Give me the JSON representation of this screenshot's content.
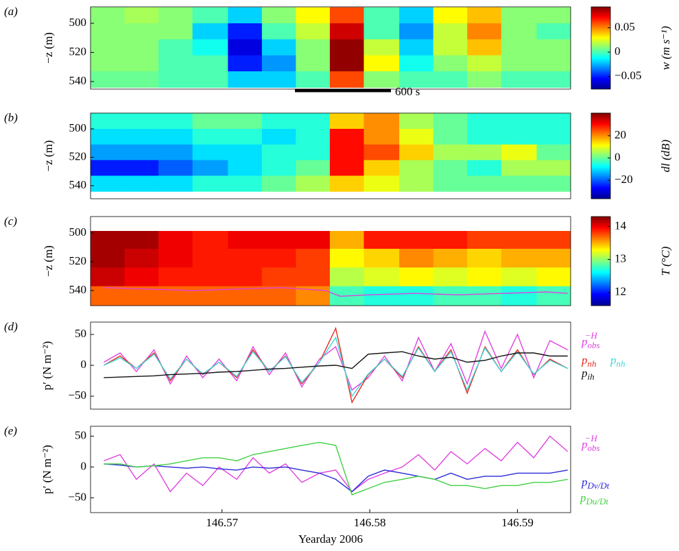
{
  "chart_data": [
    {
      "type": "heatmap",
      "panel_label": "(a)",
      "ylabel": "−z (m)",
      "yaxis_inverted": true,
      "xlim": [
        146.5611,
        146.5936
      ],
      "ylim": [
        488.7,
        545.2
      ],
      "yticks": [
        500,
        520,
        540
      ],
      "xbins": [
        146.5611,
        146.5634,
        146.5657,
        146.568,
        146.5704,
        146.5727,
        146.575,
        146.5773,
        146.5796,
        146.582,
        146.5843,
        146.5866,
        146.5889,
        146.5913,
        146.5936
      ],
      "ybins": [
        489,
        500,
        511,
        522,
        533,
        544
      ],
      "z": [
        [
          0.01,
          0.015,
          0.01,
          0.0,
          -0.02,
          0.01,
          0.03,
          0.06,
          0.0,
          -0.02,
          0.03,
          0.04,
          0.01,
          0.01
        ],
        [
          0.01,
          0.01,
          0.01,
          -0.02,
          -0.05,
          0.0,
          0.02,
          0.08,
          0.0,
          -0.03,
          0.02,
          0.05,
          0.01,
          0.0
        ],
        [
          0.01,
          0.01,
          0.0,
          -0.01,
          -0.06,
          -0.02,
          0.01,
          0.09,
          0.02,
          -0.02,
          0.02,
          0.04,
          0.01,
          0.01
        ],
        [
          0.01,
          0.01,
          0.0,
          0.0,
          -0.05,
          -0.03,
          0.01,
          0.09,
          0.03,
          -0.01,
          0.01,
          0.02,
          0.01,
          0.01
        ],
        [
          0.005,
          0.005,
          0.0,
          0.0,
          -0.02,
          -0.02,
          0.0,
          0.06,
          0.01,
          0.0,
          0.0,
          0.01,
          0.0,
          0.0
        ]
      ],
      "colorbar": {
        "label": "w (m s⁻¹)",
        "clim": [
          -0.076,
          0.093
        ],
        "ticks": [
          0.05,
          0,
          {
            "value": -0.05,
            "label": "−0.05"
          }
        ]
      },
      "annotation": "600 s"
    },
    {
      "type": "heatmap",
      "panel_label": "(b)",
      "ylabel": "−z (m)",
      "yaxis_inverted": true,
      "xlim": [
        146.5611,
        146.5936
      ],
      "ylim": [
        488.9,
        549.2
      ],
      "yticks": [
        500,
        520,
        540
      ],
      "xbins": [
        146.5611,
        146.5634,
        146.5657,
        146.568,
        146.5704,
        146.5727,
        146.575,
        146.5773,
        146.5796,
        146.582,
        146.5843,
        146.5866,
        146.5889,
        146.5913,
        146.5936
      ],
      "ybins": [
        489,
        500,
        511,
        522,
        533,
        544
      ],
      "z": [
        [
          -5,
          -5,
          -5,
          0,
          0,
          -5,
          -5,
          15,
          20,
          5,
          0,
          -5,
          -5,
          -5
        ],
        [
          -10,
          -10,
          -10,
          -5,
          -5,
          -10,
          -5,
          30,
          20,
          10,
          0,
          -5,
          -5,
          -5
        ],
        [
          -15,
          -15,
          -15,
          -10,
          -10,
          -5,
          -5,
          30,
          25,
          15,
          5,
          5,
          10,
          0
        ],
        [
          -25,
          -25,
          -20,
          -15,
          -10,
          -5,
          0,
          30,
          15,
          5,
          0,
          -5,
          5,
          5
        ],
        [
          -10,
          -10,
          -10,
          -5,
          -5,
          0,
          5,
          15,
          10,
          5,
          0,
          0,
          0,
          0
        ]
      ],
      "colorbar": {
        "label": "dl (dB)",
        "clim": [
          -36.6,
          40.3
        ],
        "ticks": [
          20,
          0,
          {
            "value": -20,
            "label": "−20"
          }
        ]
      }
    },
    {
      "type": "heatmap",
      "panel_label": "(c)",
      "ylabel": "−z (m)",
      "yaxis_inverted": true,
      "xlim": [
        146.5611,
        146.5936
      ],
      "ylim": [
        488.6,
        550.5
      ],
      "yticks": [
        500,
        520,
        540
      ],
      "xbins": [
        146.5611,
        146.5634,
        146.5657,
        146.568,
        146.5704,
        146.5727,
        146.575,
        146.5773,
        146.5796,
        146.582,
        146.5843,
        146.5866,
        146.5889,
        146.5913,
        146.5936
      ],
      "ybins": [
        498.6,
        511,
        524,
        537,
        550.5
      ],
      "z": [
        [
          14.2,
          14.2,
          14.0,
          13.9,
          14.0,
          14.0,
          14.0,
          13.5,
          13.9,
          13.9,
          13.9,
          13.8,
          13.8,
          13.8
        ],
        [
          14.2,
          14.1,
          14.0,
          13.9,
          13.9,
          13.9,
          13.8,
          13.3,
          13.4,
          13.6,
          13.5,
          13.4,
          13.5,
          13.5
        ],
        [
          14.1,
          14.0,
          13.9,
          13.9,
          13.9,
          13.8,
          13.8,
          13.1,
          13.2,
          13.3,
          13.2,
          13.3,
          13.2,
          13.3
        ],
        [
          13.7,
          13.7,
          13.7,
          13.7,
          13.7,
          13.7,
          13.6,
          12.8,
          12.7,
          12.7,
          12.8,
          12.8,
          12.7,
          12.8
        ]
      ],
      "colorbar": {
        "label": "T (°C)",
        "clim": [
          11.6,
          14.3
        ],
        "ticks": [
          14,
          13,
          12
        ]
      },
      "series": [
        {
          "color": "#e040e0",
          "x": [
            146.562,
            146.565,
            146.568,
            146.571,
            146.574,
            146.577,
            146.578,
            146.58,
            146.583,
            146.586,
            146.589,
            146.592,
            146.5934
          ],
          "values": [
            538,
            539,
            540,
            539,
            538,
            540,
            544,
            543,
            542,
            543,
            542,
            541,
            542
          ]
        }
      ]
    },
    {
      "type": "line",
      "panel_label": "(d)",
      "ylabel": "p′ (N m⁻²)",
      "xlim": [
        146.5611,
        146.5936
      ],
      "ylim": [
        -71,
        70
      ],
      "yticks": [
        {
          "value": -50,
          "label": "−50"
        },
        0,
        50
      ],
      "x": [
        146.562,
        146.5631,
        146.5642,
        146.5654,
        146.5665,
        146.5676,
        146.5687,
        146.5698,
        146.571,
        146.5721,
        146.5732,
        146.5743,
        146.5754,
        146.5766,
        146.5777,
        146.5788,
        146.5799,
        146.581,
        146.5822,
        146.5833,
        146.5844,
        146.5855,
        146.5866,
        146.5878,
        146.5889,
        146.59,
        146.5911,
        146.5922,
        146.5934
      ],
      "series": [
        {
          "name": "p",
          "subscript": "obs",
          "superscript": "−H",
          "color": "#e040e0",
          "values": [
            5,
            20,
            -10,
            25,
            -30,
            15,
            -20,
            10,
            -25,
            30,
            -15,
            20,
            -35,
            10,
            30,
            -40,
            -20,
            15,
            -25,
            45,
            -10,
            35,
            -30,
            55,
            -5,
            50,
            -20,
            40,
            25
          ]
        },
        {
          "name": "p",
          "subscript": "nh",
          "color": "#e8281e",
          "values": [
            0,
            15,
            -5,
            20,
            -25,
            10,
            -15,
            5,
            -20,
            25,
            -10,
            15,
            -30,
            5,
            60,
            -60,
            -15,
            10,
            -20,
            30,
            -10,
            25,
            -45,
            30,
            -10,
            25,
            -15,
            10,
            -5
          ]
        },
        {
          "name": "p",
          "subscript": "nh",
          "color": "#3ad8d8",
          "values": [
            0,
            12,
            -5,
            18,
            -22,
            10,
            -14,
            5,
            -18,
            22,
            -10,
            14,
            -28,
            5,
            45,
            -50,
            -14,
            10,
            -18,
            28,
            -10,
            22,
            -40,
            28,
            -10,
            22,
            -14,
            8,
            -5
          ]
        },
        {
          "name": "p",
          "subscript": "ih",
          "color": "#111111",
          "values": [
            -20,
            -19,
            -18,
            -17,
            -15,
            -14,
            -13,
            -11,
            -10,
            -8,
            -6,
            -5,
            -3,
            -1,
            0,
            -5,
            18,
            20,
            22,
            15,
            10,
            13,
            5,
            8,
            15,
            20,
            20,
            15,
            15
          ]
        }
      ]
    },
    {
      "type": "line",
      "panel_label": "(e)",
      "ylabel": "p′ (N m⁻²)",
      "xlabel": "Yearday 2006",
      "xlim": [
        146.5611,
        146.5936
      ],
      "ylim": [
        -74,
        66
      ],
      "yticks": [
        {
          "value": -50,
          "label": "−50"
        },
        0,
        50
      ],
      "xticks": [
        146.57,
        146.58,
        146.59
      ],
      "x": [
        146.562,
        146.5631,
        146.5642,
        146.5654,
        146.5665,
        146.5676,
        146.5687,
        146.5698,
        146.571,
        146.5721,
        146.5732,
        146.5743,
        146.5754,
        146.5766,
        146.5777,
        146.5788,
        146.5799,
        146.581,
        146.5822,
        146.5833,
        146.5844,
        146.5855,
        146.5866,
        146.5878,
        146.5889,
        146.59,
        146.5911,
        146.5922,
        146.5934
      ],
      "series": [
        {
          "name": "p",
          "subscript": "obs",
          "superscript": "−H",
          "color": "#e040e0",
          "values": [
            10,
            20,
            -20,
            5,
            -40,
            -10,
            -30,
            0,
            -20,
            15,
            -10,
            5,
            -25,
            -10,
            -5,
            -40,
            -20,
            -10,
            0,
            20,
            -5,
            25,
            5,
            30,
            10,
            40,
            15,
            50,
            25
          ]
        },
        {
          "name": "p",
          "subscript": "Dv/Dt",
          "color": "#2828d8",
          "values": [
            5,
            3,
            0,
            2,
            0,
            -2,
            0,
            -3,
            -5,
            0,
            -2,
            0,
            -5,
            -10,
            -20,
            -40,
            -15,
            -5,
            -10,
            -15,
            -20,
            -10,
            -20,
            -15,
            -15,
            -10,
            -10,
            -10,
            -5
          ]
        },
        {
          "name": "p",
          "subscript": "Du/Dt",
          "color": "#40d040",
          "values": [
            5,
            5,
            0,
            2,
            5,
            10,
            15,
            15,
            10,
            20,
            25,
            30,
            35,
            40,
            35,
            -45,
            -35,
            -25,
            -20,
            -15,
            -20,
            -30,
            -30,
            -35,
            -30,
            -30,
            -25,
            -25,
            -20
          ]
        }
      ]
    }
  ]
}
